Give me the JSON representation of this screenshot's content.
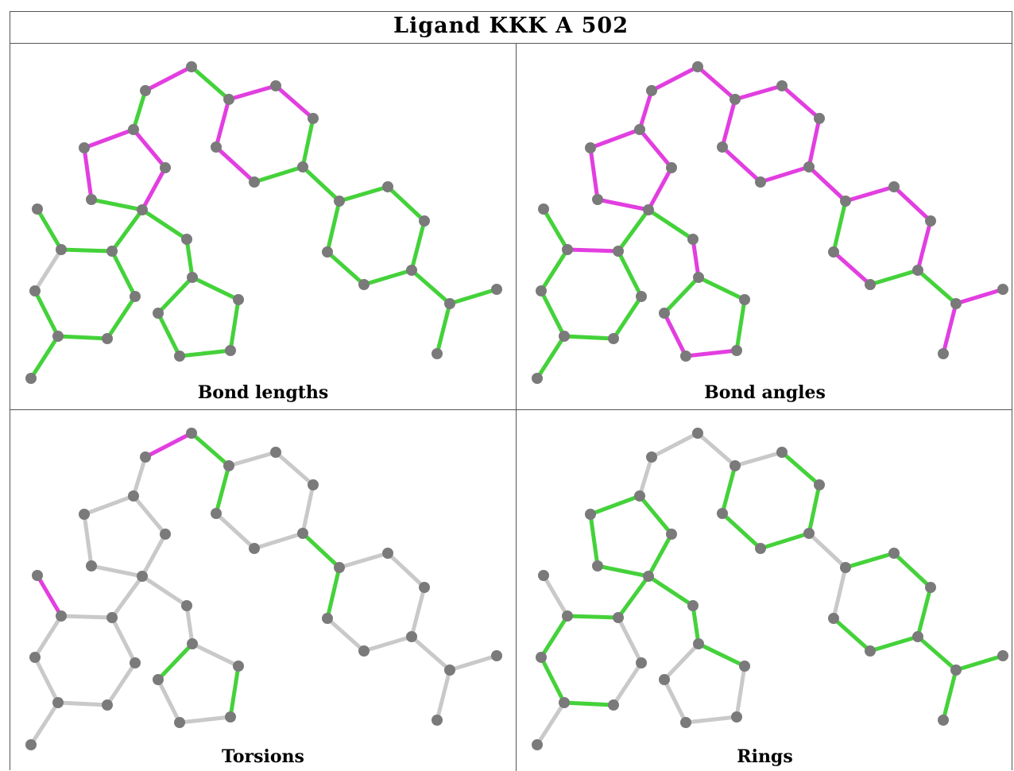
{
  "title": "Ligand KKK A 502",
  "colors": {
    "green": "#44d23a",
    "magenta": "#e23ee0",
    "gray": "#c9c9c9",
    "atom": "#7a7a7a"
  },
  "panels": [
    {
      "caption": "Bond lengths",
      "bond_colors": [
        "m",
        "g",
        "m",
        "m",
        "g",
        "g",
        "m",
        "m",
        "g",
        "m",
        "m",
        "g",
        "m",
        "m",
        "g",
        "g",
        "g",
        "g",
        "g",
        "g",
        "g",
        "g",
        "g",
        "g",
        "g",
        "g",
        "g",
        "g",
        "g",
        "g",
        "g",
        "g",
        "g",
        "gray",
        "g",
        "g",
        "g",
        "g",
        "g"
      ]
    },
    {
      "caption": "Bond angles",
      "bond_colors": [
        "m",
        "m",
        "m",
        "m",
        "m",
        "m",
        "m",
        "m",
        "m",
        "m",
        "m",
        "m",
        "m",
        "m",
        "m",
        "m",
        "m",
        "m",
        "g",
        "m",
        "g",
        "g",
        "m",
        "m",
        "g",
        "m",
        "g",
        "g",
        "m",
        "m",
        "g",
        "g",
        "m",
        "g",
        "g",
        "g",
        "g",
        "g",
        "g"
      ]
    },
    {
      "caption": "Torsions",
      "bond_colors": [
        "m",
        "g",
        "gray",
        "gray",
        "gray",
        "gray",
        "gray",
        "g",
        "gray",
        "gray",
        "gray",
        "gray",
        "gray",
        "gray",
        "g",
        "gray",
        "gray",
        "gray",
        "gray",
        "gray",
        "g",
        "gray",
        "gray",
        "gray",
        "gray",
        "gray",
        "gray",
        "g",
        "gray",
        "gray",
        "g",
        "gray",
        "gray",
        "gray",
        "gray",
        "gray",
        "gray",
        "gray",
        "m"
      ]
    },
    {
      "caption": "Rings",
      "bond_colors": [
        "gray",
        "gray",
        "gray",
        "g",
        "g",
        "g",
        "g",
        "g",
        "gray",
        "g",
        "g",
        "g",
        "g",
        "g",
        "gray",
        "g",
        "g",
        "g",
        "g",
        "g",
        "gray",
        "g",
        "g",
        "g",
        "g",
        "g",
        "g",
        "gray",
        "gray",
        "gray",
        "gray",
        "g",
        "g",
        "g",
        "g",
        "g",
        "gray",
        "gray",
        "gray"
      ]
    }
  ]
}
